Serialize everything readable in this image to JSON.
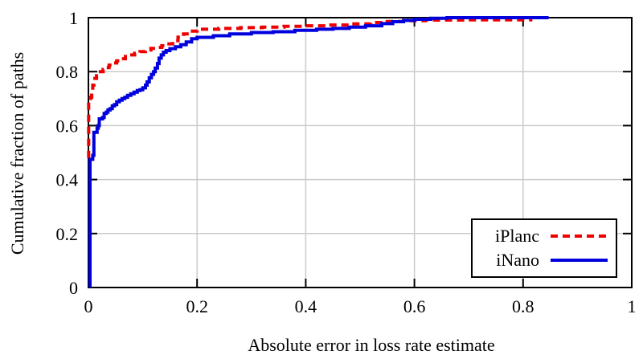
{
  "chart_data": {
    "type": "line",
    "subtype": "cdf-step",
    "title": "",
    "xlabel": "Absolute error in loss rate estimate",
    "ylabel": "Cumulative fraction of paths",
    "xlim": [
      0,
      1
    ],
    "ylim": [
      0,
      1
    ],
    "grid": true,
    "grid_color": "#cbcbcb",
    "border_color": "#000000",
    "legend_position": "bottom-right",
    "x_ticks": [
      {
        "v": 0,
        "label": "0"
      },
      {
        "v": 0.2,
        "label": "0.2"
      },
      {
        "v": 0.4,
        "label": "0.4"
      },
      {
        "v": 0.6,
        "label": "0.6"
      },
      {
        "v": 0.8,
        "label": "0.8"
      },
      {
        "v": 1,
        "label": "1"
      }
    ],
    "y_ticks": [
      {
        "v": 0,
        "label": "0"
      },
      {
        "v": 0.2,
        "label": "0.2"
      },
      {
        "v": 0.4,
        "label": "0.4"
      },
      {
        "v": 0.6,
        "label": "0.6"
      },
      {
        "v": 0.8,
        "label": "0.8"
      },
      {
        "v": 1,
        "label": "1"
      }
    ],
    "legend": [
      {
        "label": "iPlanc",
        "color": "#ee0000",
        "style": "dashed"
      },
      {
        "label": "iNano",
        "color": "#0000dd",
        "style": "solid"
      }
    ],
    "series": [
      {
        "name": "iPlanc",
        "color": "#ee0000",
        "dasharray": "9 6",
        "width": 4,
        "step": true,
        "points": [
          [
            0.0005,
            0.48
          ],
          [
            0.0005,
            0.7
          ],
          [
            0.004,
            0.705
          ],
          [
            0.006,
            0.73
          ],
          [
            0.008,
            0.75
          ],
          [
            0.01,
            0.765
          ],
          [
            0.012,
            0.775
          ],
          [
            0.015,
            0.785
          ],
          [
            0.018,
            0.793
          ],
          [
            0.022,
            0.8
          ],
          [
            0.027,
            0.808
          ],
          [
            0.032,
            0.815
          ],
          [
            0.038,
            0.824
          ],
          [
            0.045,
            0.832
          ],
          [
            0.052,
            0.84
          ],
          [
            0.06,
            0.848
          ],
          [
            0.068,
            0.856
          ],
          [
            0.076,
            0.862
          ],
          [
            0.085,
            0.868
          ],
          [
            0.095,
            0.874
          ],
          [
            0.105,
            0.88
          ],
          [
            0.115,
            0.886
          ],
          [
            0.125,
            0.89
          ],
          [
            0.135,
            0.896
          ],
          [
            0.145,
            0.903
          ],
          [
            0.155,
            0.915
          ],
          [
            0.165,
            0.928
          ],
          [
            0.175,
            0.94
          ],
          [
            0.185,
            0.95
          ],
          [
            0.2,
            0.957
          ],
          [
            0.24,
            0.96
          ],
          [
            0.28,
            0.963
          ],
          [
            0.32,
            0.965
          ],
          [
            0.36,
            0.968
          ],
          [
            0.4,
            0.97
          ],
          [
            0.44,
            0.973
          ],
          [
            0.48,
            0.977
          ],
          [
            0.52,
            0.982
          ],
          [
            0.55,
            0.986
          ],
          [
            0.58,
            0.989
          ],
          [
            0.62,
            0.991
          ],
          [
            0.7,
            0.992
          ],
          [
            0.817,
            0.992
          ]
        ]
      },
      {
        "name": "iNano",
        "color": "#0000dd",
        "dasharray": "",
        "width": 4,
        "step": true,
        "points": [
          [
            0.003,
            0.0
          ],
          [
            0.003,
            0.475
          ],
          [
            0.008,
            0.48
          ],
          [
            0.008,
            0.49
          ],
          [
            0.01,
            0.49
          ],
          [
            0.01,
            0.575
          ],
          [
            0.016,
            0.578
          ],
          [
            0.016,
            0.59
          ],
          [
            0.018,
            0.6
          ],
          [
            0.02,
            0.6
          ],
          [
            0.02,
            0.625
          ],
          [
            0.026,
            0.63
          ],
          [
            0.029,
            0.645
          ],
          [
            0.033,
            0.65
          ],
          [
            0.036,
            0.658
          ],
          [
            0.04,
            0.663
          ],
          [
            0.044,
            0.673
          ],
          [
            0.048,
            0.678
          ],
          [
            0.052,
            0.688
          ],
          [
            0.057,
            0.694
          ],
          [
            0.062,
            0.7
          ],
          [
            0.067,
            0.705
          ],
          [
            0.072,
            0.712
          ],
          [
            0.078,
            0.718
          ],
          [
            0.084,
            0.724
          ],
          [
            0.09,
            0.73
          ],
          [
            0.095,
            0.733
          ],
          [
            0.1,
            0.74
          ],
          [
            0.105,
            0.75
          ],
          [
            0.108,
            0.762
          ],
          [
            0.112,
            0.777
          ],
          [
            0.116,
            0.79
          ],
          [
            0.12,
            0.8
          ],
          [
            0.123,
            0.813
          ],
          [
            0.127,
            0.83
          ],
          [
            0.13,
            0.85
          ],
          [
            0.134,
            0.862
          ],
          [
            0.138,
            0.872
          ],
          [
            0.143,
            0.878
          ],
          [
            0.15,
            0.885
          ],
          [
            0.16,
            0.892
          ],
          [
            0.17,
            0.9
          ],
          [
            0.18,
            0.91
          ],
          [
            0.19,
            0.922
          ],
          [
            0.2,
            0.927
          ],
          [
            0.23,
            0.933
          ],
          [
            0.26,
            0.94
          ],
          [
            0.3,
            0.945
          ],
          [
            0.34,
            0.948
          ],
          [
            0.38,
            0.953
          ],
          [
            0.42,
            0.957
          ],
          [
            0.45,
            0.96
          ],
          [
            0.48,
            0.965
          ],
          [
            0.51,
            0.97
          ],
          [
            0.54,
            0.978
          ],
          [
            0.56,
            0.985
          ],
          [
            0.58,
            0.99
          ],
          [
            0.6,
            0.994
          ],
          [
            0.63,
            0.998
          ],
          [
            0.66,
            1.0
          ],
          [
            0.847,
            1.0
          ]
        ]
      }
    ]
  }
}
